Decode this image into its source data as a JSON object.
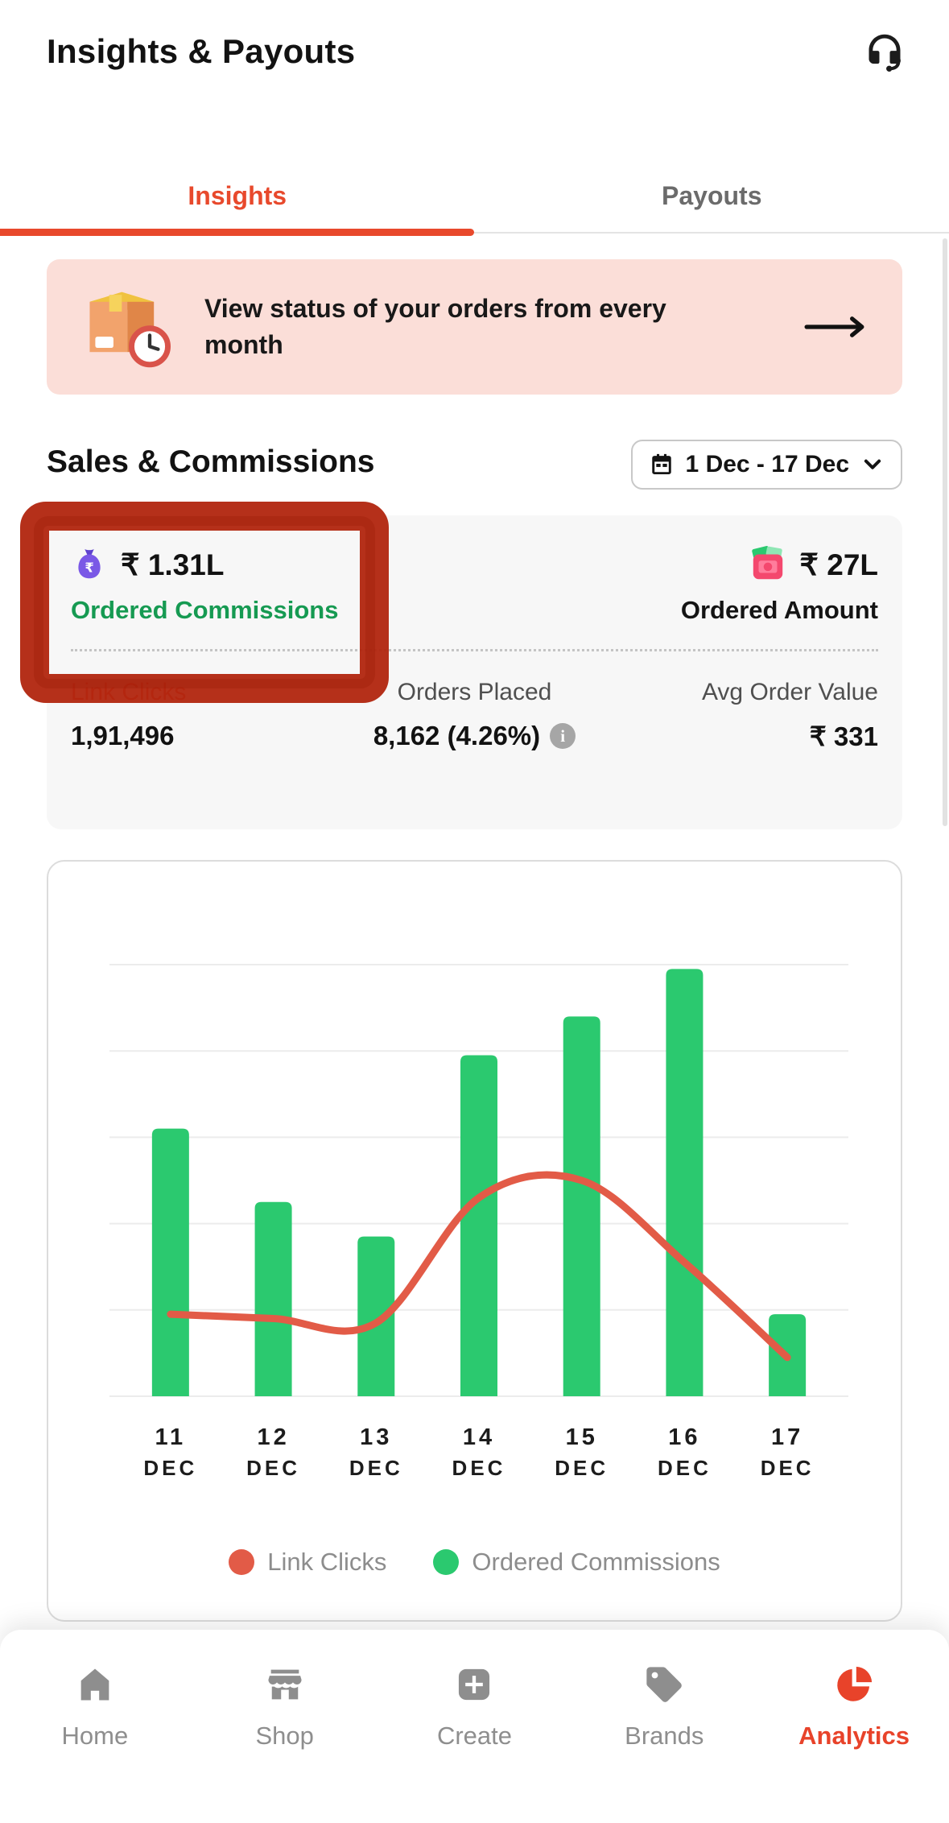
{
  "colors": {
    "accent": "#e8492c",
    "bar_green": "#2bc96f",
    "line_red": "#e25b47",
    "green_label": "#169a52",
    "banner_bg": "#fbded8",
    "marker_red": "#b1250e"
  },
  "header": {
    "title": "Insights & Payouts"
  },
  "tabs": [
    {
      "label": "Insights",
      "active": true
    },
    {
      "label": "Payouts",
      "active": false
    }
  ],
  "banner": {
    "text": "View status of your orders from every month"
  },
  "sales_section": {
    "heading": "Sales & Commissions",
    "date_range": "1 Dec - 17 Dec"
  },
  "stats": {
    "ordered_commissions": {
      "value": "₹ 1.31L",
      "label": "Ordered Commissions"
    },
    "ordered_amount": {
      "value": "₹ 27L",
      "label": "Ordered Amount"
    },
    "link_clicks": {
      "label": "Link Clicks",
      "value": "1,91,496"
    },
    "orders_placed": {
      "label": "Orders Placed",
      "value": "8,162 (4.26%)"
    },
    "avg_order_value": {
      "label": "Avg Order Value",
      "value": "₹ 331"
    }
  },
  "icons": {
    "info": "i"
  },
  "chart_data": {
    "type": "combo",
    "categories": [
      "11 DEC",
      "12 DEC",
      "13 DEC",
      "14 DEC",
      "15 DEC",
      "16 DEC",
      "17 DEC"
    ],
    "series": [
      {
        "name": "Ordered Commissions",
        "type": "bar",
        "color": "#2bc96f",
        "values": [
          62,
          45,
          37,
          79,
          88,
          99,
          19
        ]
      },
      {
        "name": "Link Clicks",
        "type": "line",
        "color": "#e25b47",
        "values": [
          19,
          18,
          17,
          46,
          50,
          31,
          9
        ]
      }
    ],
    "ylim": [
      0,
      100
    ],
    "grid": true,
    "legend_position": "bottom",
    "note": "no y-axis labels shown; values are relative (% of plot height)"
  },
  "bottom_nav": {
    "items": [
      {
        "label": "Home",
        "active": false
      },
      {
        "label": "Shop",
        "active": false
      },
      {
        "label": "Create",
        "active": false
      },
      {
        "label": "Brands",
        "active": false
      },
      {
        "label": "Analytics",
        "active": true
      }
    ]
  }
}
